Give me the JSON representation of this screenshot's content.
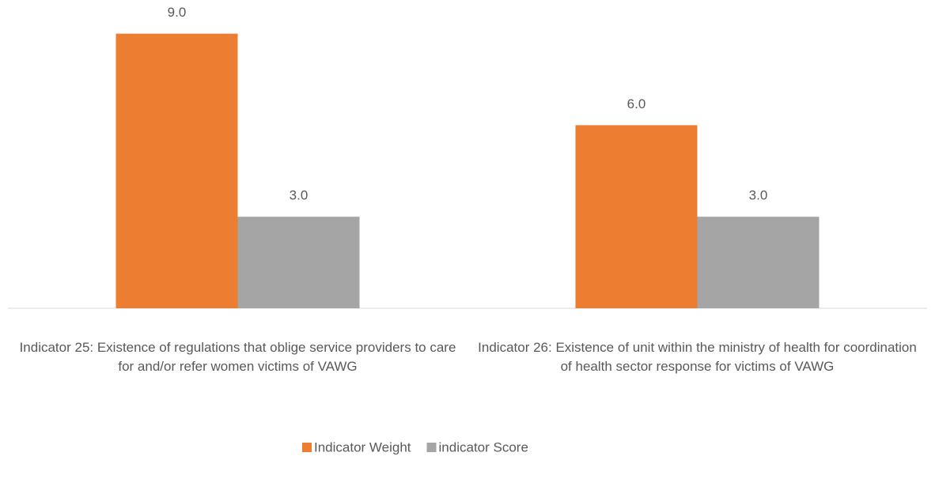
{
  "chart_data": {
    "type": "bar",
    "categories": [
      "Indicator 25: Existence of regulations that oblige service providers to care for and/or refer women victims of VAWG",
      "Indicator 26: Existence of unit within the ministry of health for coordination of health sector response for victims of VAWG"
    ],
    "series": [
      {
        "name": "Indicator Weight",
        "color": "#ed7d31",
        "values": [
          9,
          6
        ],
        "value_labels": [
          "9.0",
          "6.0"
        ]
      },
      {
        "name": "indicator Score",
        "color": "#a5a5a5",
        "values": [
          3,
          3
        ],
        "value_labels": [
          "3.0",
          "3.0"
        ]
      }
    ],
    "ylim": [
      0,
      10
    ],
    "legend": "bottom"
  }
}
